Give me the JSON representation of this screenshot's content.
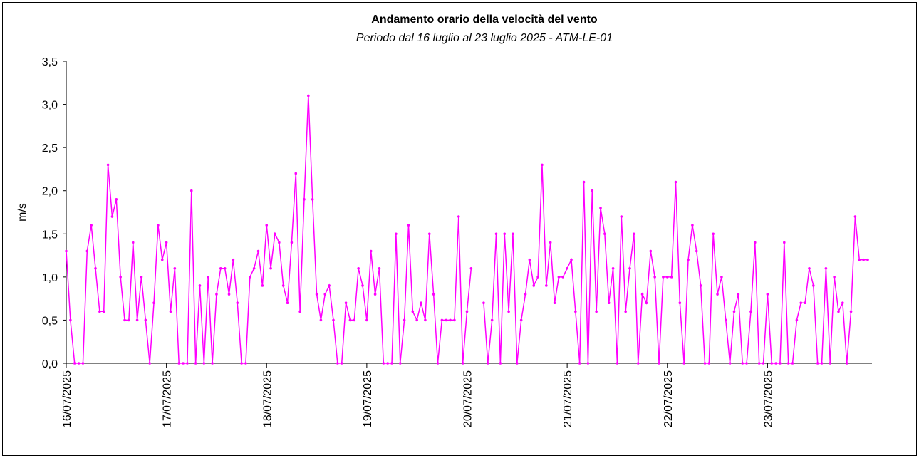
{
  "chart_data": {
    "type": "line",
    "title": "Andamento orario della velocità del vento",
    "subtitle": "Periodo dal 16 luglio al 23 luglio 2025 - ATM-LE-01",
    "y_label": "m/s",
    "categories": [
      "16/07/2025",
      null,
      null,
      null,
      null,
      null,
      null,
      null,
      null,
      null,
      null,
      null,
      null,
      null,
      null,
      null,
      null,
      null,
      null,
      null,
      null,
      null,
      null,
      null,
      "17/07/2025",
      null,
      null,
      null,
      null,
      null,
      null,
      null,
      null,
      null,
      null,
      null,
      null,
      null,
      null,
      null,
      null,
      null,
      null,
      null,
      null,
      null,
      null,
      null,
      "18/07/2025",
      null,
      null,
      null,
      null,
      null,
      null,
      null,
      null,
      null,
      null,
      null,
      null,
      null,
      null,
      null,
      null,
      null,
      null,
      null,
      null,
      null,
      null,
      null,
      "19/07/2025",
      null,
      null,
      null,
      null,
      null,
      null,
      null,
      null,
      null,
      null,
      null,
      null,
      null,
      null,
      null,
      null,
      null,
      null,
      null,
      null,
      null,
      null,
      null,
      "20/07/2025",
      null,
      null,
      null,
      null,
      null,
      null,
      null,
      null,
      null,
      null,
      null,
      null,
      null,
      null,
      null,
      null,
      null,
      null,
      null,
      null,
      null,
      null,
      null,
      "21/07/2025",
      null,
      null,
      null,
      null,
      null,
      null,
      null,
      null,
      null,
      null,
      null,
      null,
      null,
      null,
      null,
      null,
      null,
      null,
      null,
      null,
      null,
      null,
      null,
      "22/07/2025",
      null,
      null,
      null,
      null,
      null,
      null,
      null,
      null,
      null,
      null,
      null,
      null,
      null,
      null,
      null,
      null,
      null,
      null,
      null,
      null,
      null,
      null,
      null,
      "23/07/2025",
      null,
      null,
      null,
      null,
      null,
      null,
      null,
      null,
      null,
      null,
      null,
      null,
      null,
      null,
      null,
      null,
      null,
      null,
      null,
      null,
      null,
      null,
      null,
      null
    ],
    "series": [
      {
        "color": "#ff00ff",
        "values": [
          1.3,
          0.5,
          0,
          0,
          0,
          1.3,
          1.6,
          1.1,
          0.6,
          0.6,
          2.3,
          1.7,
          1.9,
          1.0,
          0.5,
          0.5,
          1.4,
          0.5,
          1.0,
          0.5,
          0,
          0.7,
          1.6,
          1.2,
          1.4,
          0.6,
          1.1,
          0,
          0,
          0,
          2.0,
          0,
          0.9,
          0,
          1.0,
          0,
          0.8,
          1.1,
          1.1,
          0.8,
          1.2,
          0.7,
          0,
          0,
          1.0,
          1.1,
          1.3,
          0.9,
          1.6,
          1.1,
          1.5,
          1.4,
          0.9,
          0.7,
          1.4,
          2.2,
          0.6,
          1.9,
          3.1,
          1.9,
          0.8,
          0.5,
          0.8,
          0.9,
          0.5,
          0,
          0,
          0.7,
          0.5,
          0.5,
          1.1,
          0.9,
          0.5,
          1.3,
          0.8,
          1.1,
          0,
          0,
          0,
          1.5,
          0,
          0.5,
          1.6,
          0.6,
          0.5,
          0.7,
          0.5,
          1.5,
          0.8,
          0,
          0.5,
          0.5,
          0.5,
          0.5,
          1.7,
          0,
          0.6,
          1.1,
          null,
          null,
          0.7,
          0,
          0.5,
          1.5,
          0,
          1.5,
          0.6,
          1.5,
          0,
          0.5,
          0.8,
          1.2,
          0.9,
          1.0,
          2.3,
          0.9,
          1.4,
          0.7,
          1.0,
          1.0,
          1.1,
          1.2,
          0.6,
          0,
          2.1,
          0,
          2.0,
          0.6,
          1.8,
          1.5,
          0.7,
          1.1,
          0,
          1.7,
          0.6,
          1.1,
          1.5,
          0,
          0.8,
          0.7,
          1.3,
          1.0,
          0,
          1.0,
          1.0,
          1.0,
          2.1,
          0.7,
          0,
          1.2,
          1.6,
          1.3,
          0.9,
          0,
          0,
          1.5,
          0.8,
          1.0,
          0.5,
          0,
          0.6,
          0.8,
          0,
          0,
          0.6,
          1.4,
          0,
          0,
          0.8,
          0,
          0,
          0,
          1.4,
          0,
          0,
          0.5,
          0.7,
          0.7,
          1.1,
          0.9,
          0,
          0,
          1.1,
          0,
          1.0,
          0.6,
          0.7,
          0,
          0.6,
          1.7,
          1.2,
          1.2,
          1.2
        ]
      }
    ],
    "ylim": [
      0,
      3.5
    ],
    "yticks": [
      {
        "value": 0,
        "label": "0,0"
      },
      {
        "value": 0.5,
        "label": "0,5"
      },
      {
        "value": 1,
        "label": "1,0"
      },
      {
        "value": 1.5,
        "label": "1,5"
      },
      {
        "value": 2,
        "label": "2,0"
      },
      {
        "value": 2.5,
        "label": "2,5"
      },
      {
        "value": 3,
        "label": "3,0"
      },
      {
        "value": 3.5,
        "label": "3,5"
      }
    ],
    "grid": false
  }
}
